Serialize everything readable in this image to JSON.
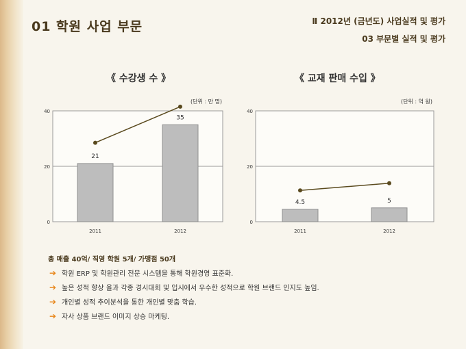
{
  "header": {
    "title": "01  학원 사업 부문",
    "section_line1": "Ⅱ  2012년 (금년도) 사업실적 및 평가",
    "section_line2": "03  부문별 실적 및 평가"
  },
  "chart_data": [
    {
      "type": "bar",
      "title": "《  수강생 수  》",
      "unit": "(단위 : 만 명)",
      "categories": [
        "2011",
        "2012"
      ],
      "values": [
        21,
        35
      ],
      "value_labels": [
        "21",
        "35"
      ],
      "line_values": [
        28.5,
        41.5
      ],
      "ylim": [
        0,
        40
      ],
      "yticks": [
        "0",
        "20",
        "40"
      ],
      "ytick_values": [
        0,
        20,
        40
      ],
      "grid": true,
      "colors": {
        "bar": "#bdbdbd",
        "bar_edge": "#8f8f8f",
        "line": "#5a4a1e"
      }
    },
    {
      "type": "bar",
      "title": "《  교재 판매 수입  》",
      "unit": "(단위 : 억 원)",
      "categories": [
        "2011",
        "2012"
      ],
      "values": [
        4.5,
        5
      ],
      "value_labels": [
        "4.5",
        "5"
      ],
      "line_values": [
        11.3,
        13.9
      ],
      "ylim": [
        0,
        40
      ],
      "yticks": [
        "0",
        "20",
        "40"
      ],
      "ytick_values": [
        0,
        20,
        40
      ],
      "grid": true,
      "colors": {
        "bar": "#bdbdbd",
        "bar_edge": "#8f8f8f",
        "line": "#5a4a1e"
      }
    }
  ],
  "summary": "총 매출 40억/ 직영 학원 5개/ 가맹점 50개",
  "bullets": [
    "학원 ERP 및 학원관리 전문 시스템을 통해 학원경영 표준화.",
    "높은 성적 향상 율과 각종 경시대회 및 입시에서 우수한 성적으로 학원 브랜드 인지도 높임.",
    "개인별 성적 추이분석을 통한 개인별 맞춤 학습.",
    "자사 상품 브랜드 이미지 상승 마케팅."
  ],
  "bullet_icon": "arrow-right-icon",
  "accent_color": "#e8861a"
}
